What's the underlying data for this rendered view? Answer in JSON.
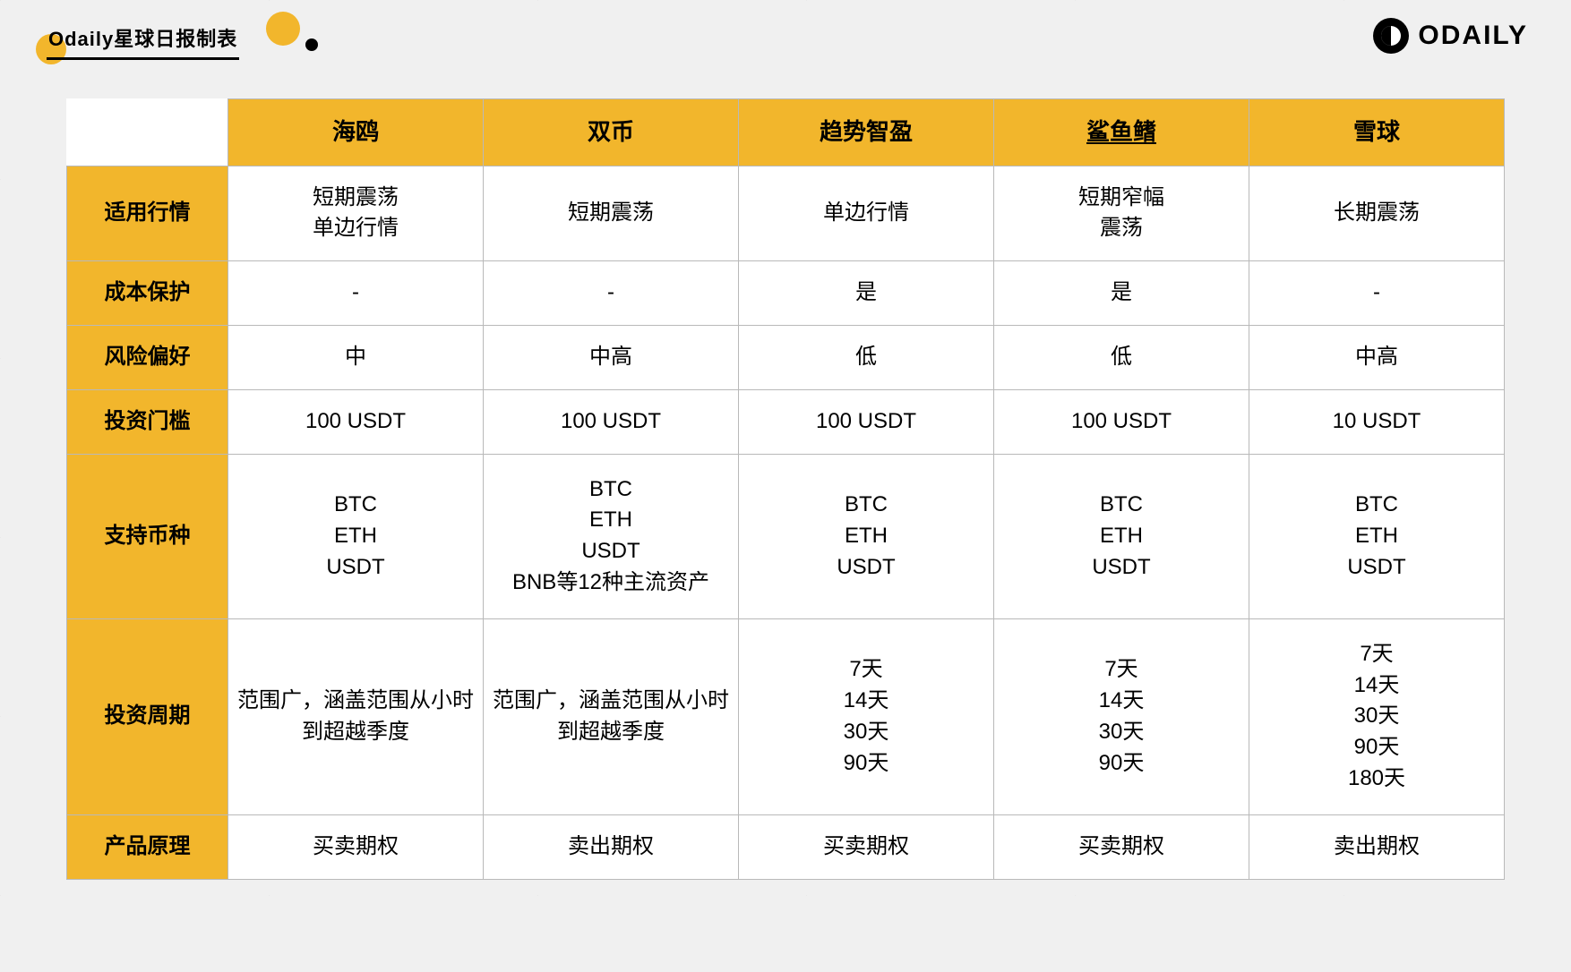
{
  "colors": {
    "accent": "#f2b62c",
    "head_bg": "#f2b62c",
    "row_bg": "#f2b62c",
    "grid": "#b9b9b9",
    "page_bg": "#f0f0f0",
    "text": "#000000"
  },
  "header": {
    "title": "Odaily星球日报制表"
  },
  "brand": {
    "text": "ODAILY"
  },
  "table": {
    "type": "table",
    "columns": [
      {
        "label": "海鸥",
        "underline": false
      },
      {
        "label": "双币",
        "underline": false
      },
      {
        "label": "趋势智盈",
        "underline": false
      },
      {
        "label": "鲨鱼鳍",
        "underline": true
      },
      {
        "label": "雪球",
        "underline": false
      }
    ],
    "row_labels": [
      "适用行情",
      "成本保护",
      "风险偏好",
      "投资门槛",
      "支持币种",
      "投资周期",
      "产品原理"
    ],
    "rows": [
      [
        "短期震荡\n单边行情",
        "短期震荡",
        "单边行情",
        "短期窄幅\n震荡",
        "长期震荡"
      ],
      [
        "-",
        "-",
        "是",
        "是",
        "-"
      ],
      [
        "中",
        "中高",
        "低",
        "低",
        "中高"
      ],
      [
        "100 USDT",
        "100 USDT",
        "100 USDT",
        "100 USDT",
        "10  USDT"
      ],
      [
        "BTC\nETH\nUSDT",
        "BTC\nETH\nUSDT\nBNB等12种主流资产",
        "BTC\nETH\nUSDT",
        "BTC\nETH\nUSDT",
        "BTC\nETH\nUSDT"
      ],
      [
        "范围广，涵盖范围从小时到超越季度",
        "范围广，涵盖范围从小时到超越季度",
        "7天\n14天\n30天\n90天",
        "7天\n14天\n30天\n90天",
        "7天\n14天\n30天\n90天\n180天"
      ],
      [
        "买卖期权",
        "卖出期权",
        "买卖期权",
        "买卖期权",
        "卖出期权"
      ]
    ],
    "font_size_header": 26,
    "font_size_cell": 24
  }
}
